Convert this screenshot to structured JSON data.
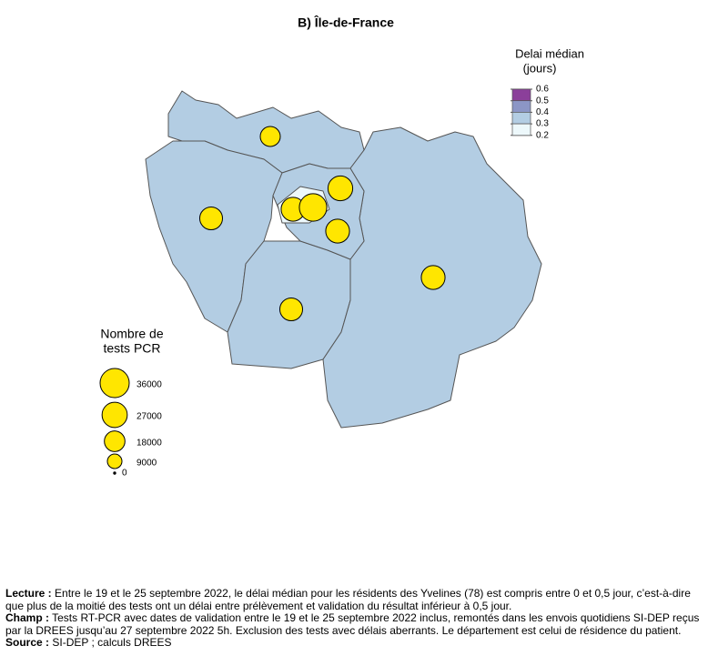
{
  "title": "B) Île-de-France",
  "color_legend": {
    "title": [
      "Delai médian",
      "(jours)"
    ],
    "ticks": [
      0.6,
      0.5,
      0.4,
      0.3,
      0.2
    ],
    "colors": [
      "#8b3f9a",
      "#8c96c6",
      "#b3cde3",
      "#edf8fb"
    ]
  },
  "size_legend": {
    "title": [
      "Nombre de",
      "tests PCR"
    ],
    "values": [
      36000,
      27000,
      18000,
      9000,
      0
    ]
  },
  "bubbles": {
    "color": "#ffe600",
    "values": [
      17000,
      22000,
      24000,
      32000,
      26000,
      24000,
      24000,
      22000
    ]
  },
  "notes": [
    {
      "label": "Lecture :",
      "text": "Entre le 19 et le 25 septembre 2022, le délai médian pour les résidents des Yvelines (78) est compris entre 0 et 0,5 jour, c’est-à-dire que plus de la moitié des tests ont un délai entre prélèvement et validation du résultat inférieur à 0,5 jour."
    },
    {
      "label": "Champ :",
      "text": "Tests RT-PCR avec dates de validation entre le 19 et le 25 septembre 2022 inclus, remontés dans les envois quotidiens SI-DEP reçus par la DREES jusqu’au 27 septembre 2022 5h. Exclusion des tests avec délais aberrants. Le département est celui de résidence du patient."
    },
    {
      "label": "Source :",
      "text": "SI-DEP ; calculs DREES"
    }
  ]
}
